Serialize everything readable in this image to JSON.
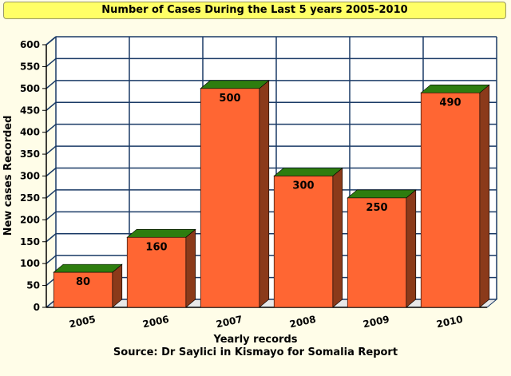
{
  "chart_data": {
    "type": "bar",
    "title": "Number of Cases During the Last 5 years 2005-2010",
    "categories": [
      "2005",
      "2006",
      "2007",
      "2008",
      "2009",
      "2010"
    ],
    "values": [
      80,
      160,
      500,
      300,
      250,
      490
    ],
    "data_labels": [
      "80",
      "160",
      "500",
      "300",
      "250",
      "490"
    ],
    "xlabel": "Yearly records",
    "ylabel": "New cases Recorded",
    "ylim": [
      0,
      600
    ],
    "yticks": [
      "0",
      "50",
      "100",
      "150",
      "200",
      "250",
      "300",
      "350",
      "400",
      "450",
      "500",
      "550",
      "600"
    ],
    "source": "Source: Dr Saylici in Kismayo for Somalia Report",
    "grid": true,
    "style": "3d",
    "colors": {
      "bar_front": "#ff6633",
      "bar_side": "#8b3a1a",
      "bar_top": "#2e7d0f",
      "grid": "#1a3a66",
      "title_bg": "#ffff66",
      "background": "#fffde8"
    }
  }
}
